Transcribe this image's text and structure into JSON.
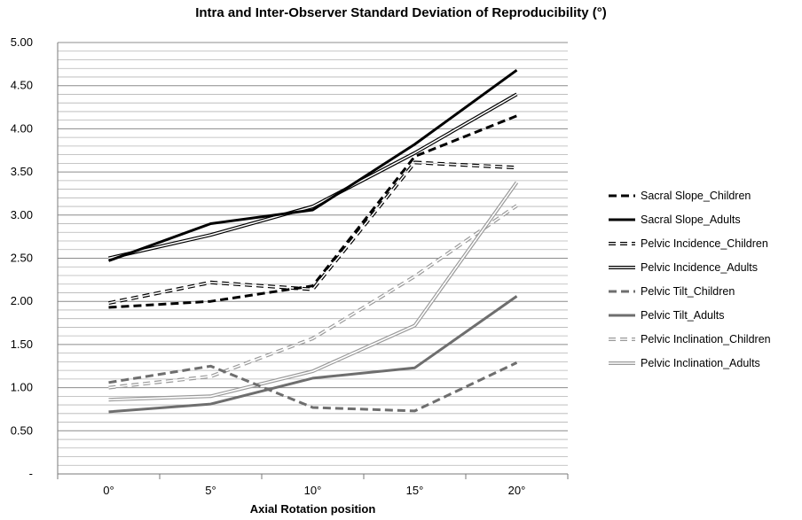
{
  "chart_data": {
    "type": "line",
    "title": "Intra and Inter-Observer Standard Deviation of Reproducibility (°)",
    "xlabel": "Axial Rotation position",
    "ylabel": "",
    "categories": [
      "0°",
      "5°",
      "10°",
      "15°",
      "20°"
    ],
    "ylim": [
      0,
      5
    ],
    "y_ticks": [
      "-",
      "0.50",
      "1.00",
      "1.50",
      "2.00",
      "2.50",
      "3.00",
      "3.50",
      "4.00",
      "4.50",
      "5.00"
    ],
    "grid": "horizontal, minor every 0.1",
    "legend_position": "right",
    "series": [
      {
        "name": "Sacral Slope_Children",
        "values": [
          1.93,
          2.0,
          2.18,
          3.68,
          4.15
        ],
        "color": "#000000",
        "style": "dashed-thick"
      },
      {
        "name": "Sacral Slope_Adults",
        "values": [
          2.47,
          2.9,
          3.06,
          3.82,
          4.68
        ],
        "color": "#000000",
        "style": "solid-thick"
      },
      {
        "name": "Pelvic Incidence_Children",
        "values": [
          1.98,
          2.22,
          2.14,
          3.61,
          3.55
        ],
        "color": "#000000",
        "style": "double-dashed"
      },
      {
        "name": "Pelvic Incidence_Adults",
        "values": [
          2.5,
          2.77,
          3.1,
          3.72,
          4.4
        ],
        "color": "#000000",
        "style": "double-solid"
      },
      {
        "name": "Pelvic Tilt_Children",
        "values": [
          1.06,
          1.25,
          0.77,
          0.73,
          1.29
        ],
        "color": "#6e6e6e",
        "style": "dashed-thick"
      },
      {
        "name": "Pelvic Tilt_Adults",
        "values": [
          0.72,
          0.81,
          1.11,
          1.23,
          2.06
        ],
        "color": "#6e6e6e",
        "style": "solid-thick"
      },
      {
        "name": "Pelvic Inclination_Children",
        "values": [
          1.0,
          1.13,
          1.57,
          2.29,
          3.11
        ],
        "color": "#9a9a9a",
        "style": "double-dashed"
      },
      {
        "name": "Pelvic Inclination_Adults",
        "values": [
          0.86,
          0.9,
          1.19,
          1.72,
          3.38
        ],
        "color": "#9a9a9a",
        "style": "double-solid"
      }
    ]
  }
}
